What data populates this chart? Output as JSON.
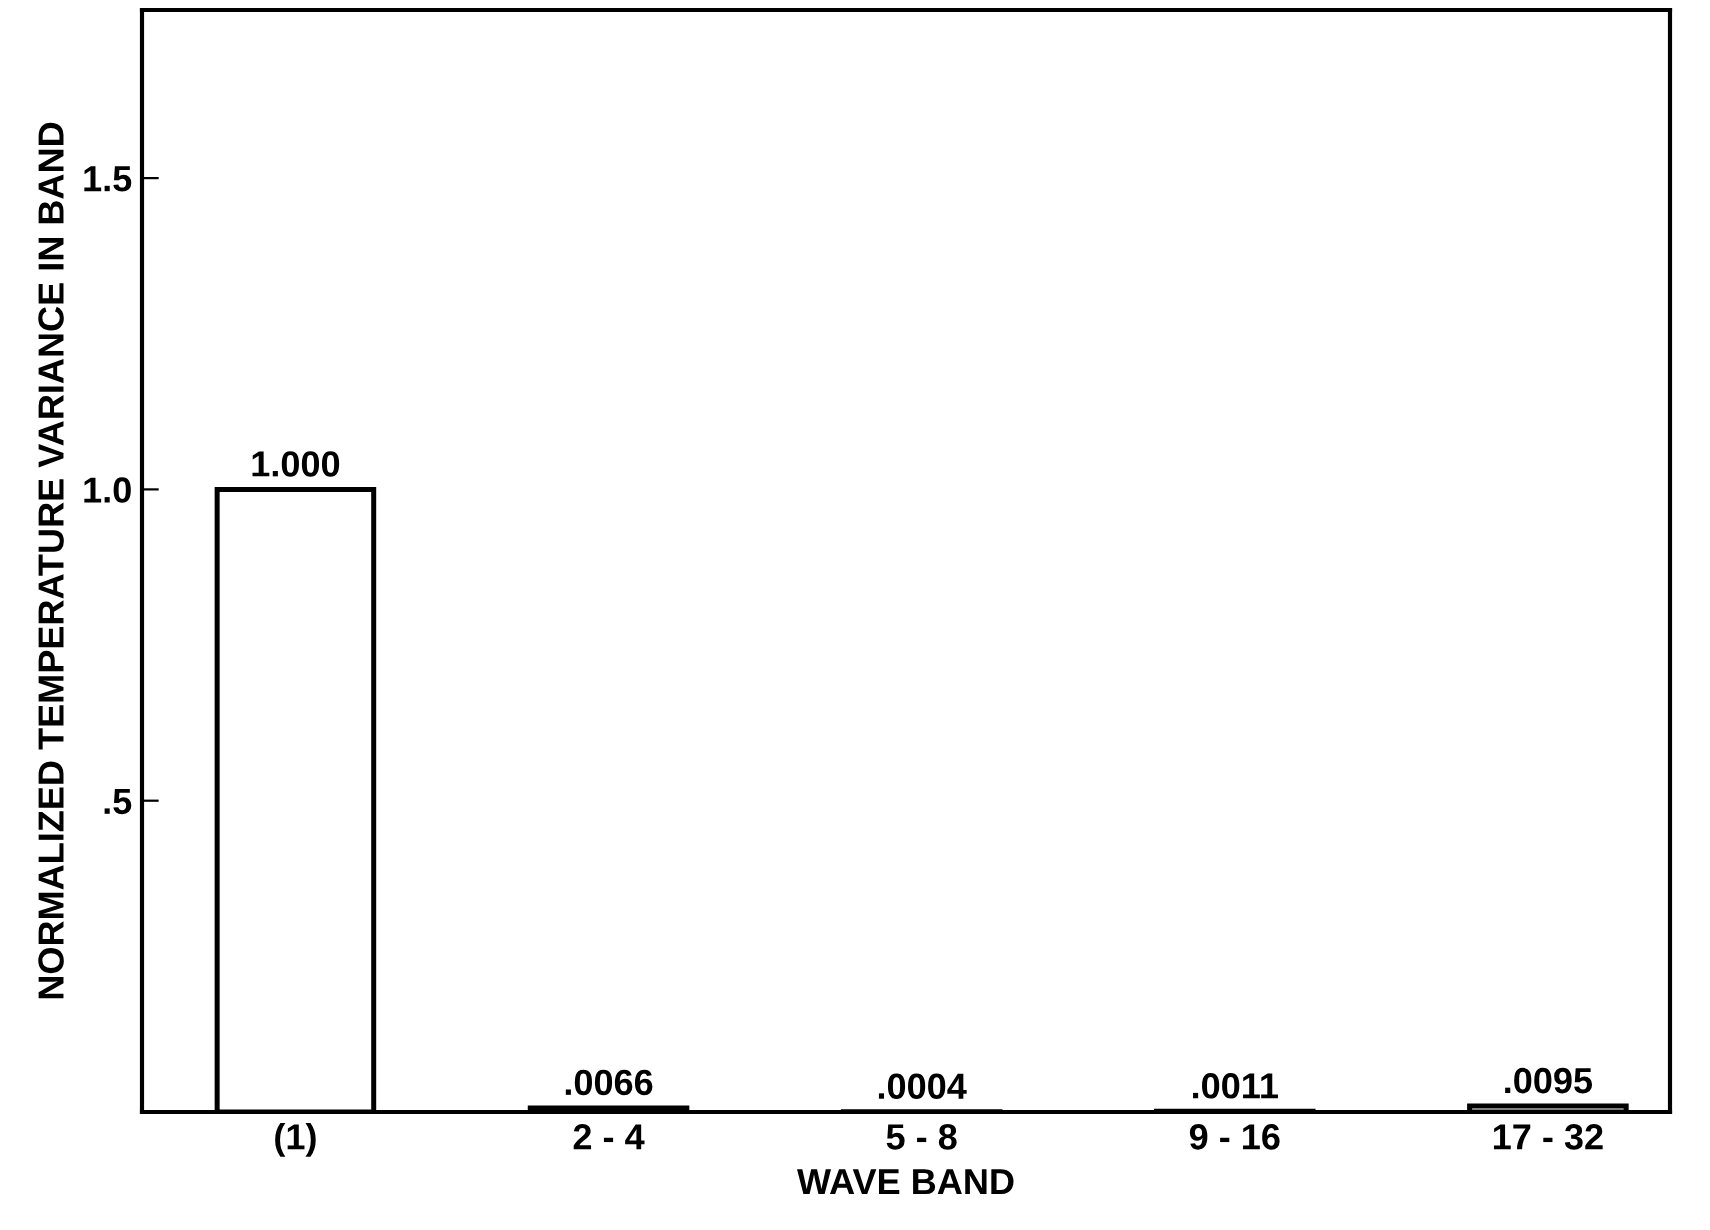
{
  "chart_data": {
    "type": "bar",
    "xlabel": "WAVE BAND",
    "ylabel": "NORMALIZED TEMPERATURE VARIANCE IN BAND",
    "categories": [
      "(1)",
      "2 - 4",
      "5 - 8",
      "9 - 16",
      "17 - 32"
    ],
    "values": [
      1.0,
      0.0066,
      0.0004,
      0.0011,
      0.0095
    ],
    "value_labels": [
      "1.000",
      ".0066",
      ".0004",
      ".0011",
      ".0095"
    ],
    "color": "#ffffff",
    "ylim": [
      0,
      1.77
    ],
    "yticks": [
      {
        "value": 0.5,
        "label": ".5"
      },
      {
        "value": 1.0,
        "label": "1.0"
      },
      {
        "value": 1.5,
        "label": "1.5"
      }
    ],
    "grid": false
  }
}
